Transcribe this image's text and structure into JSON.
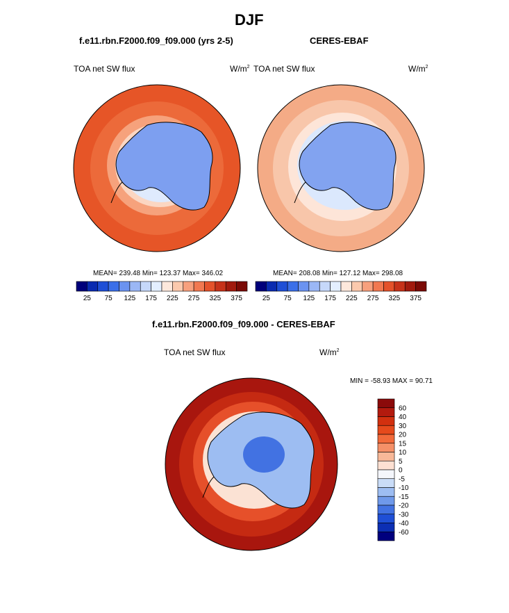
{
  "page": {
    "title": "DJF",
    "left_model": "f.e11.rbn.F2000.f09_f09.000 (yrs 2-5)",
    "right_model": "CERES-EBAF",
    "diff_title": "f.e11.rbn.F2000.f09_f09.000 - CERES-EBAF"
  },
  "panels": [
    {
      "variable": "TOA net SW flux",
      "units_base": "W/m",
      "units_exp": "2",
      "stats": "MEAN= 239.48  Min= 123.37  Max= 346.02"
    },
    {
      "variable": "TOA net SW flux",
      "units_base": "W/m",
      "units_exp": "2",
      "stats": "MEAN= 208.08  Min= 127.12  Max= 298.08"
    },
    {
      "variable": "TOA net SW flux",
      "units_base": "W/m",
      "units_exp": "2",
      "stats": "MIN = -58.93 MAX =  90.71"
    }
  ],
  "chart_data": [
    {
      "type": "heatmap",
      "subtype": "polar-stereographic-contour",
      "title": "f.e11.rbn.F2000.f09_f09.000 (yrs 2-5)",
      "variable": "TOA net SW flux",
      "units": "W/m2",
      "mean": 239.48,
      "min": 123.37,
      "max": 346.02,
      "colorbar": {
        "orientation": "horizontal",
        "levels": [
          25,
          50,
          75,
          100,
          125,
          150,
          175,
          200,
          225,
          250,
          275,
          300,
          325,
          350,
          375
        ],
        "tick_labels": [
          "25",
          "75",
          "125",
          "175",
          "225",
          "275",
          "325",
          "375"
        ],
        "colors": [
          "#00007a",
          "#0a2bb0",
          "#1f4fd6",
          "#3b6fe8",
          "#6b93f0",
          "#9bb7f5",
          "#c6d8fa",
          "#e4efff",
          "#fde8dc",
          "#fbc9ad",
          "#f7a07d",
          "#f17850",
          "#e4522b",
          "#c6321a",
          "#a11a0e",
          "#7a0a06"
        ]
      }
    },
    {
      "type": "heatmap",
      "subtype": "polar-stereographic-contour",
      "title": "CERES-EBAF",
      "variable": "TOA net SW flux",
      "units": "W/m2",
      "mean": 208.08,
      "min": 127.12,
      "max": 298.08,
      "colorbar": {
        "orientation": "horizontal",
        "levels": [
          25,
          50,
          75,
          100,
          125,
          150,
          175,
          200,
          225,
          250,
          275,
          300,
          325,
          350,
          375
        ],
        "tick_labels": [
          "25",
          "75",
          "125",
          "175",
          "225",
          "275",
          "325",
          "375"
        ],
        "colors": [
          "#00007a",
          "#0a2bb0",
          "#1f4fd6",
          "#3b6fe8",
          "#6b93f0",
          "#9bb7f5",
          "#c6d8fa",
          "#e4efff",
          "#fde8dc",
          "#fbc9ad",
          "#f7a07d",
          "#f17850",
          "#e4522b",
          "#c6321a",
          "#a11a0e",
          "#7a0a06"
        ]
      }
    },
    {
      "type": "heatmap",
      "subtype": "polar-stereographic-contour",
      "title": "f.e11.rbn.F2000.f09_f09.000 - CERES-EBAF",
      "variable": "TOA net SW flux",
      "units": "W/m2",
      "min": -58.93,
      "max": 90.71,
      "colorbar": {
        "orientation": "vertical",
        "levels": [
          60,
          40,
          30,
          20,
          15,
          10,
          5,
          0,
          -5,
          -10,
          -15,
          -20,
          -30,
          -40,
          -60
        ],
        "tick_labels": [
          "60",
          "40",
          "30",
          "20",
          "15",
          "10",
          "5",
          "0",
          "-5",
          "-10",
          "-15",
          "-20",
          "-30",
          "-40",
          "-60"
        ],
        "colors": [
          "#8b0a0a",
          "#b31a0e",
          "#d2300f",
          "#e64a1c",
          "#f26a3a",
          "#f59068",
          "#f8b898",
          "#fde0d2",
          "#f4f6fb",
          "#c9dcf7",
          "#9dbdf2",
          "#6f99ea",
          "#4272e2",
          "#1f4fd6",
          "#0c2fb4",
          "#00007e"
        ]
      }
    }
  ]
}
